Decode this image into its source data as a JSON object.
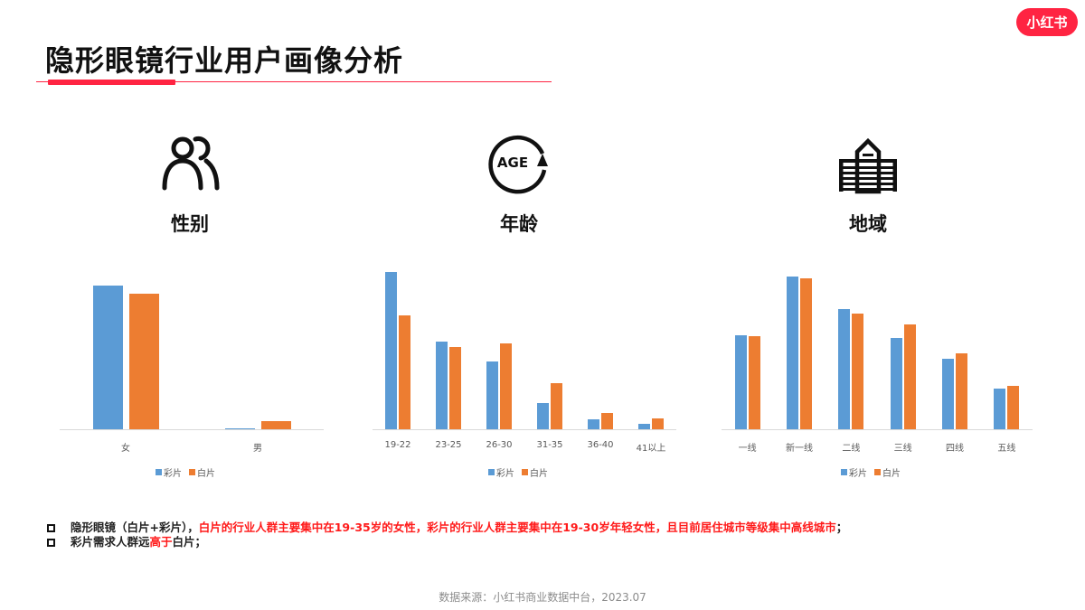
{
  "header": {
    "title": "隐形眼镜行业用户画像分析",
    "brand_badge": "小红书",
    "accent_color": "#ff2442"
  },
  "sections": [
    {
      "icon": "people-icon",
      "label": "性别"
    },
    {
      "icon": "age-cycle-icon",
      "label": "年龄",
      "icon_text": "AGE"
    },
    {
      "icon": "building-icon",
      "label": "地域"
    }
  ],
  "legend": {
    "series_1": "彩片",
    "series_2": "白片"
  },
  "colors": {
    "彩片": "#5b9bd5",
    "白片": "#ed7d31"
  },
  "chart_data": [
    {
      "type": "bar",
      "title": "性别",
      "categories": [
        "女",
        "男"
      ],
      "series": [
        {
          "name": "彩片",
          "values": [
            159,
            1
          ]
        },
        {
          "name": "白片",
          "values": [
            150,
            9
          ]
        }
      ],
      "xlabel": "",
      "ylabel": "",
      "ylim": [
        0,
        175
      ],
      "grid": false,
      "legend_position": "bottom",
      "note": "relative bar heights (no axis shown)"
    },
    {
      "type": "bar",
      "title": "年龄",
      "categories": [
        "19-22",
        "23-25",
        "26-30",
        "31-35",
        "36-40",
        "41以上"
      ],
      "series": [
        {
          "name": "彩片",
          "values": [
            174,
            97,
            75,
            29,
            11,
            6
          ]
        },
        {
          "name": "白片",
          "values": [
            126,
            91,
            95,
            51,
            18,
            12
          ]
        }
      ],
      "xlabel": "",
      "ylabel": "",
      "ylim": [
        0,
        175
      ],
      "grid": false,
      "legend_position": "bottom",
      "note": "relative bar heights (no axis shown)"
    },
    {
      "type": "bar",
      "title": "地域",
      "categories": [
        "一线",
        "新一线",
        "二线",
        "三线",
        "四线",
        "五线"
      ],
      "series": [
        {
          "name": "彩片",
          "values": [
            104,
            169,
            133,
            101,
            78,
            45
          ]
        },
        {
          "name": "白片",
          "values": [
            103,
            167,
            128,
            116,
            84,
            48
          ]
        }
      ],
      "xlabel": "",
      "ylabel": "",
      "ylim": [
        0,
        175
      ],
      "grid": false,
      "legend_position": "bottom",
      "note": "relative bar heights (no axis shown)"
    }
  ],
  "notes": [
    {
      "parts": [
        {
          "text": "隐形眼镜（白片+彩片），",
          "style": "dark"
        },
        {
          "text": "白片的行业人群主要集中在19-35岁的女性，彩片的行业人群主要集中在19-30岁年轻女性，且目前居住城市等级集中高线城市",
          "style": "red"
        },
        {
          "text": "；",
          "style": "dark"
        }
      ]
    },
    {
      "parts": [
        {
          "text": "彩片需求人群远",
          "style": "dark"
        },
        {
          "text": "高于",
          "style": "red"
        },
        {
          "text": "白片；",
          "style": "dark"
        }
      ]
    }
  ],
  "footer": {
    "source": "数据来源：小红书商业数据中台，2023.07"
  }
}
